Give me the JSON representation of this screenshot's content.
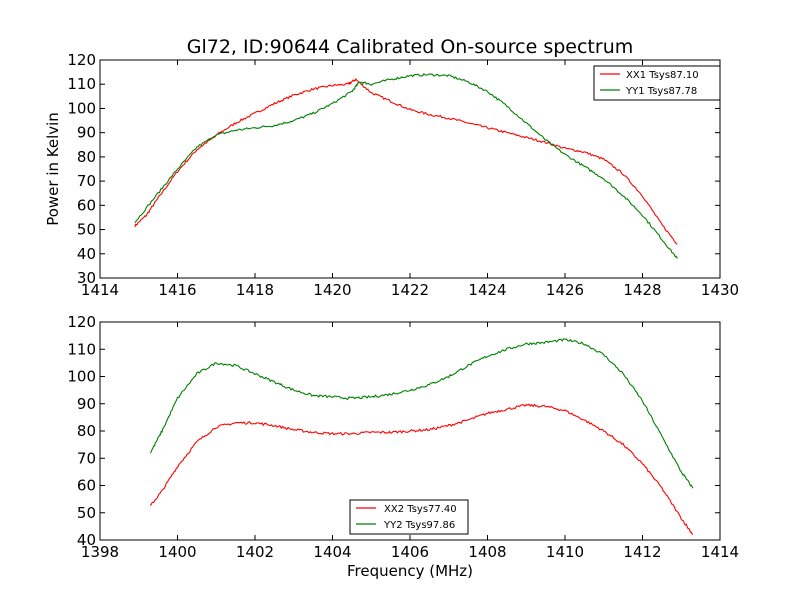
{
  "chart_data": [
    {
      "type": "line",
      "title": "Gl72, ID:90644 Calibrated On-source spectrum",
      "xlabel": "",
      "ylabel": "Power in Kelvin",
      "xlim": [
        1414,
        1430
      ],
      "ylim": [
        30,
        120
      ],
      "xticks": [
        1414,
        1416,
        1418,
        1420,
        1422,
        1424,
        1426,
        1428,
        1430
      ],
      "yticks": [
        30,
        40,
        50,
        60,
        70,
        80,
        90,
        100,
        110,
        120
      ],
      "grid": false,
      "legend_position": "top-right",
      "series": [
        {
          "name": "XX1 Tsys87.10",
          "color": "#ff0000",
          "points": [
            [
              1414.9,
              51.5
            ],
            [
              1415.2,
              56
            ],
            [
              1415.5,
              63
            ],
            [
              1416,
              74
            ],
            [
              1416.5,
              83
            ],
            [
              1417,
              89
            ],
            [
              1417.5,
              94
            ],
            [
              1418,
              98
            ],
            [
              1418.5,
              102
            ],
            [
              1419,
              105.5
            ],
            [
              1419.5,
              108
            ],
            [
              1420,
              109.5
            ],
            [
              1420.4,
              110
            ],
            [
              1420.6,
              112
            ],
            [
              1421,
              106.5
            ],
            [
              1421.5,
              103
            ],
            [
              1422,
              99.5
            ],
            [
              1422.5,
              97.5
            ],
            [
              1423,
              96
            ],
            [
              1423.5,
              94
            ],
            [
              1424,
              92
            ],
            [
              1424.5,
              90
            ],
            [
              1425,
              88
            ],
            [
              1425.5,
              86
            ],
            [
              1426,
              83.5
            ],
            [
              1426.5,
              82
            ],
            [
              1427,
              79
            ],
            [
              1427.5,
              73
            ],
            [
              1428,
              64
            ],
            [
              1428.5,
              52
            ],
            [
              1428.9,
              44
            ]
          ]
        },
        {
          "name": "YY1 Tsys87.78",
          "color": "#008000",
          "points": [
            [
              1414.9,
              53
            ],
            [
              1415.5,
              65
            ],
            [
              1416,
              75
            ],
            [
              1416.5,
              84
            ],
            [
              1417,
              89
            ],
            [
              1417.5,
              91
            ],
            [
              1418,
              92
            ],
            [
              1418.5,
              93
            ],
            [
              1419,
              95
            ],
            [
              1419.5,
              98
            ],
            [
              1420,
              102
            ],
            [
              1420.5,
              107
            ],
            [
              1420.7,
              111
            ],
            [
              1421,
              110
            ],
            [
              1421.5,
              112
            ],
            [
              1422,
              113.5
            ],
            [
              1422.5,
              114
            ],
            [
              1423,
              113.5
            ],
            [
              1423.5,
              111
            ],
            [
              1424,
              107
            ],
            [
              1424.5,
              101
            ],
            [
              1425,
              94
            ],
            [
              1425.5,
              87
            ],
            [
              1426,
              81
            ],
            [
              1426.5,
              76
            ],
            [
              1427,
              71
            ],
            [
              1427.5,
              64
            ],
            [
              1428,
              56
            ],
            [
              1428.5,
              46
            ],
            [
              1428.9,
              38
            ]
          ]
        }
      ]
    },
    {
      "type": "line",
      "title": "",
      "xlabel": "Frequency (MHz)",
      "ylabel": "",
      "xlim": [
        1398,
        1414
      ],
      "ylim": [
        40,
        120
      ],
      "xticks": [
        1398,
        1400,
        1402,
        1404,
        1406,
        1408,
        1410,
        1412,
        1414
      ],
      "yticks": [
        40,
        50,
        60,
        70,
        80,
        90,
        100,
        110,
        120
      ],
      "grid": false,
      "legend_position": "bottom-center",
      "series": [
        {
          "name": "XX2 Tsys77.40",
          "color": "#ff0000",
          "points": [
            [
              1399.3,
              52.5
            ],
            [
              1399.6,
              58
            ],
            [
              1400,
              67
            ],
            [
              1400.5,
              76
            ],
            [
              1401,
              81.5
            ],
            [
              1401.5,
              83
            ],
            [
              1402,
              83
            ],
            [
              1402.5,
              82
            ],
            [
              1403,
              80.5
            ],
            [
              1403.5,
              79.5
            ],
            [
              1404,
              79
            ],
            [
              1404.5,
              79
            ],
            [
              1405,
              79.5
            ],
            [
              1405.5,
              79.5
            ],
            [
              1406,
              80
            ],
            [
              1406.5,
              80.5
            ],
            [
              1407,
              82
            ],
            [
              1407.5,
              84
            ],
            [
              1408,
              86.5
            ],
            [
              1408.5,
              88
            ],
            [
              1409,
              89.5
            ],
            [
              1409.5,
              89
            ],
            [
              1410,
              87.5
            ],
            [
              1410.5,
              84
            ],
            [
              1411,
              80
            ],
            [
              1411.5,
              75
            ],
            [
              1412,
              68
            ],
            [
              1412.5,
              59
            ],
            [
              1413,
              48
            ],
            [
              1413.3,
              42
            ]
          ]
        },
        {
          "name": "YY2 Tsys97.86",
          "color": "#008000",
          "points": [
            [
              1399.3,
              72
            ],
            [
              1399.6,
              80
            ],
            [
              1400,
              92
            ],
            [
              1400.5,
              101
            ],
            [
              1401,
              105
            ],
            [
              1401.5,
              104
            ],
            [
              1402,
              101
            ],
            [
              1402.5,
              98
            ],
            [
              1403,
              95
            ],
            [
              1403.5,
              93
            ],
            [
              1404,
              92.5
            ],
            [
              1404.5,
              92
            ],
            [
              1405,
              92.5
            ],
            [
              1405.5,
              93.5
            ],
            [
              1406,
              95
            ],
            [
              1406.5,
              97
            ],
            [
              1407,
              100
            ],
            [
              1407.5,
              104
            ],
            [
              1408,
              107.5
            ],
            [
              1408.5,
              110
            ],
            [
              1409,
              112
            ],
            [
              1409.5,
              112.5
            ],
            [
              1410,
              113.5
            ],
            [
              1410.5,
              112
            ],
            [
              1411,
              108
            ],
            [
              1411.5,
              101
            ],
            [
              1412,
              91
            ],
            [
              1412.5,
              78
            ],
            [
              1413,
              65
            ],
            [
              1413.3,
              59
            ]
          ]
        }
      ]
    }
  ]
}
